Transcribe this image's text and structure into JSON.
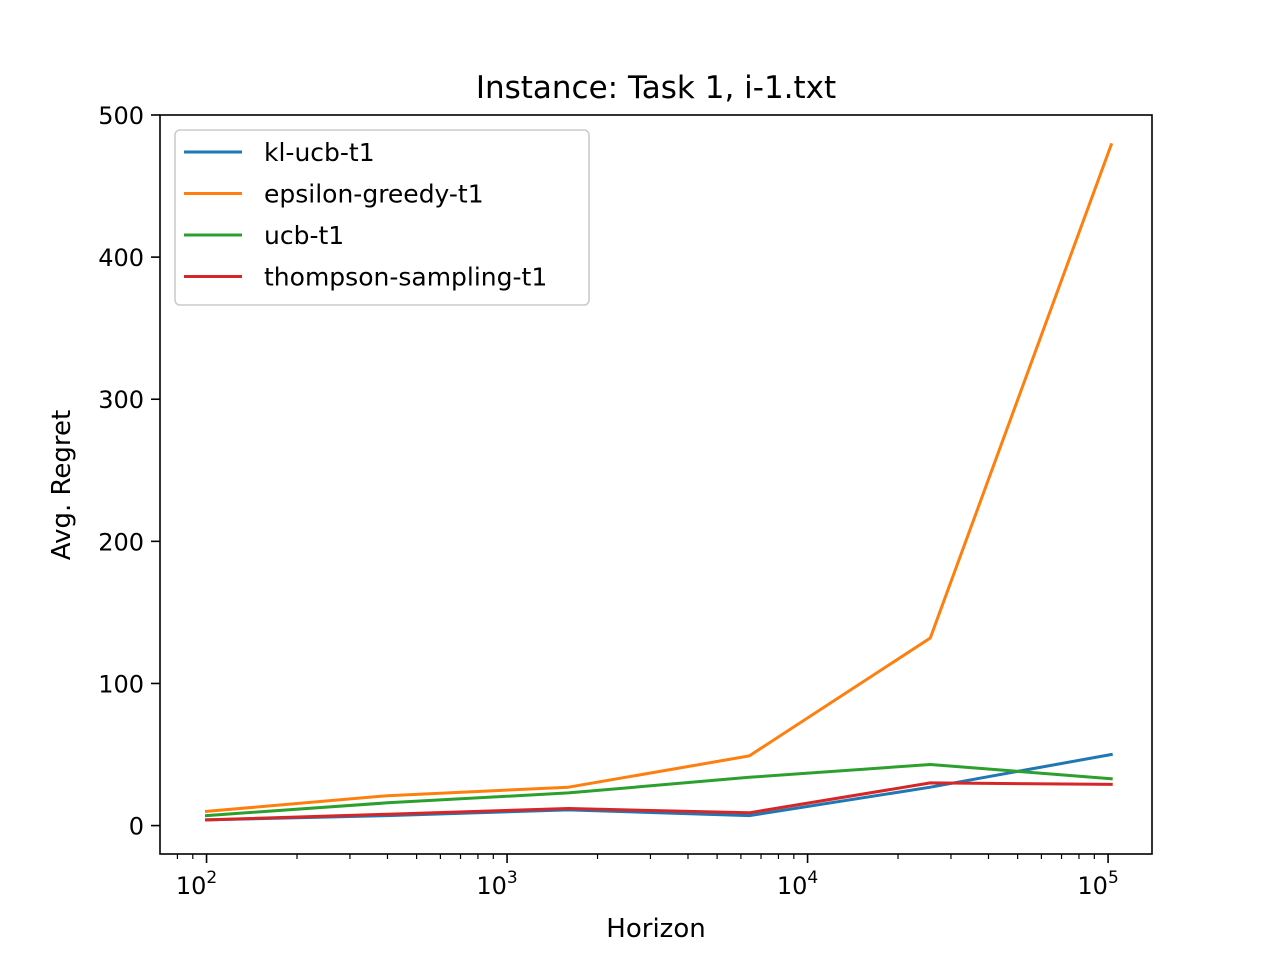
{
  "chart_data": {
    "type": "line",
    "title": "Instance: Task 1, i-1.txt",
    "xlabel": "Horizon",
    "ylabel": "Avg. Regret",
    "xscale": "log",
    "xlim": [
      70,
      140000
    ],
    "ylim": [
      -20,
      500
    ],
    "x": [
      100,
      400,
      1600,
      6400,
      25600,
      102400
    ],
    "x_ticks": [
      {
        "value": 100,
        "base": "10",
        "exp": "2"
      },
      {
        "value": 1000,
        "base": "10",
        "exp": "3"
      },
      {
        "value": 10000,
        "base": "10",
        "exp": "4"
      },
      {
        "value": 100000,
        "base": "10",
        "exp": "5"
      }
    ],
    "y_ticks": [
      {
        "value": 0,
        "label": "0"
      },
      {
        "value": 100,
        "label": "100"
      },
      {
        "value": 200,
        "label": "200"
      },
      {
        "value": 300,
        "label": "300"
      },
      {
        "value": 400,
        "label": "400"
      },
      {
        "value": 500,
        "label": "500"
      }
    ],
    "grid": false,
    "legend_position": "top-left",
    "series": [
      {
        "name": "kl-ucb-t1",
        "color": "#1f77b4",
        "values": [
          4,
          7,
          11,
          7,
          27,
          50
        ]
      },
      {
        "name": "epsilon-greedy-t1",
        "color": "#ff7f0e",
        "values": [
          10,
          21,
          27,
          49,
          132,
          479
        ]
      },
      {
        "name": "ucb-t1",
        "color": "#2ca02c",
        "values": [
          7,
          16,
          23,
          34,
          43,
          33
        ]
      },
      {
        "name": "thompson-sampling-t1",
        "color": "#d62728",
        "values": [
          4,
          8,
          12,
          9,
          30,
          29
        ]
      }
    ]
  }
}
